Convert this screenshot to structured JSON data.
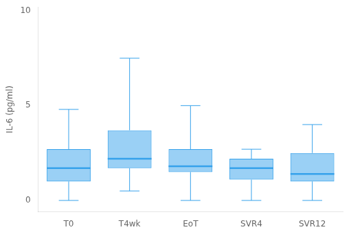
{
  "chart_data": {
    "type": "box",
    "categories": [
      "T0",
      "T4wk",
      "EoT",
      "SVR4",
      "SVR12"
    ],
    "boxes": [
      {
        "whisker_low": 0.0,
        "q1": 1.0,
        "median": 1.7,
        "q3": 2.7,
        "whisker_high": 4.8
      },
      {
        "whisker_low": 0.5,
        "q1": 1.7,
        "median": 2.2,
        "q3": 3.7,
        "whisker_high": 7.5
      },
      {
        "whisker_low": 0.0,
        "q1": 1.5,
        "median": 1.8,
        "q3": 2.7,
        "whisker_high": 5.0
      },
      {
        "whisker_low": 0.0,
        "q1": 1.1,
        "median": 1.7,
        "q3": 2.2,
        "whisker_high": 2.7
      },
      {
        "whisker_low": 0.0,
        "q1": 1.0,
        "median": 1.4,
        "q3": 2.5,
        "whisker_high": 4.0
      }
    ],
    "ylabel": "IL-6 (pg/ml)",
    "ylim": [
      -0.6,
      10.2
    ],
    "yticks": [
      0,
      5,
      10
    ],
    "grid": false
  }
}
